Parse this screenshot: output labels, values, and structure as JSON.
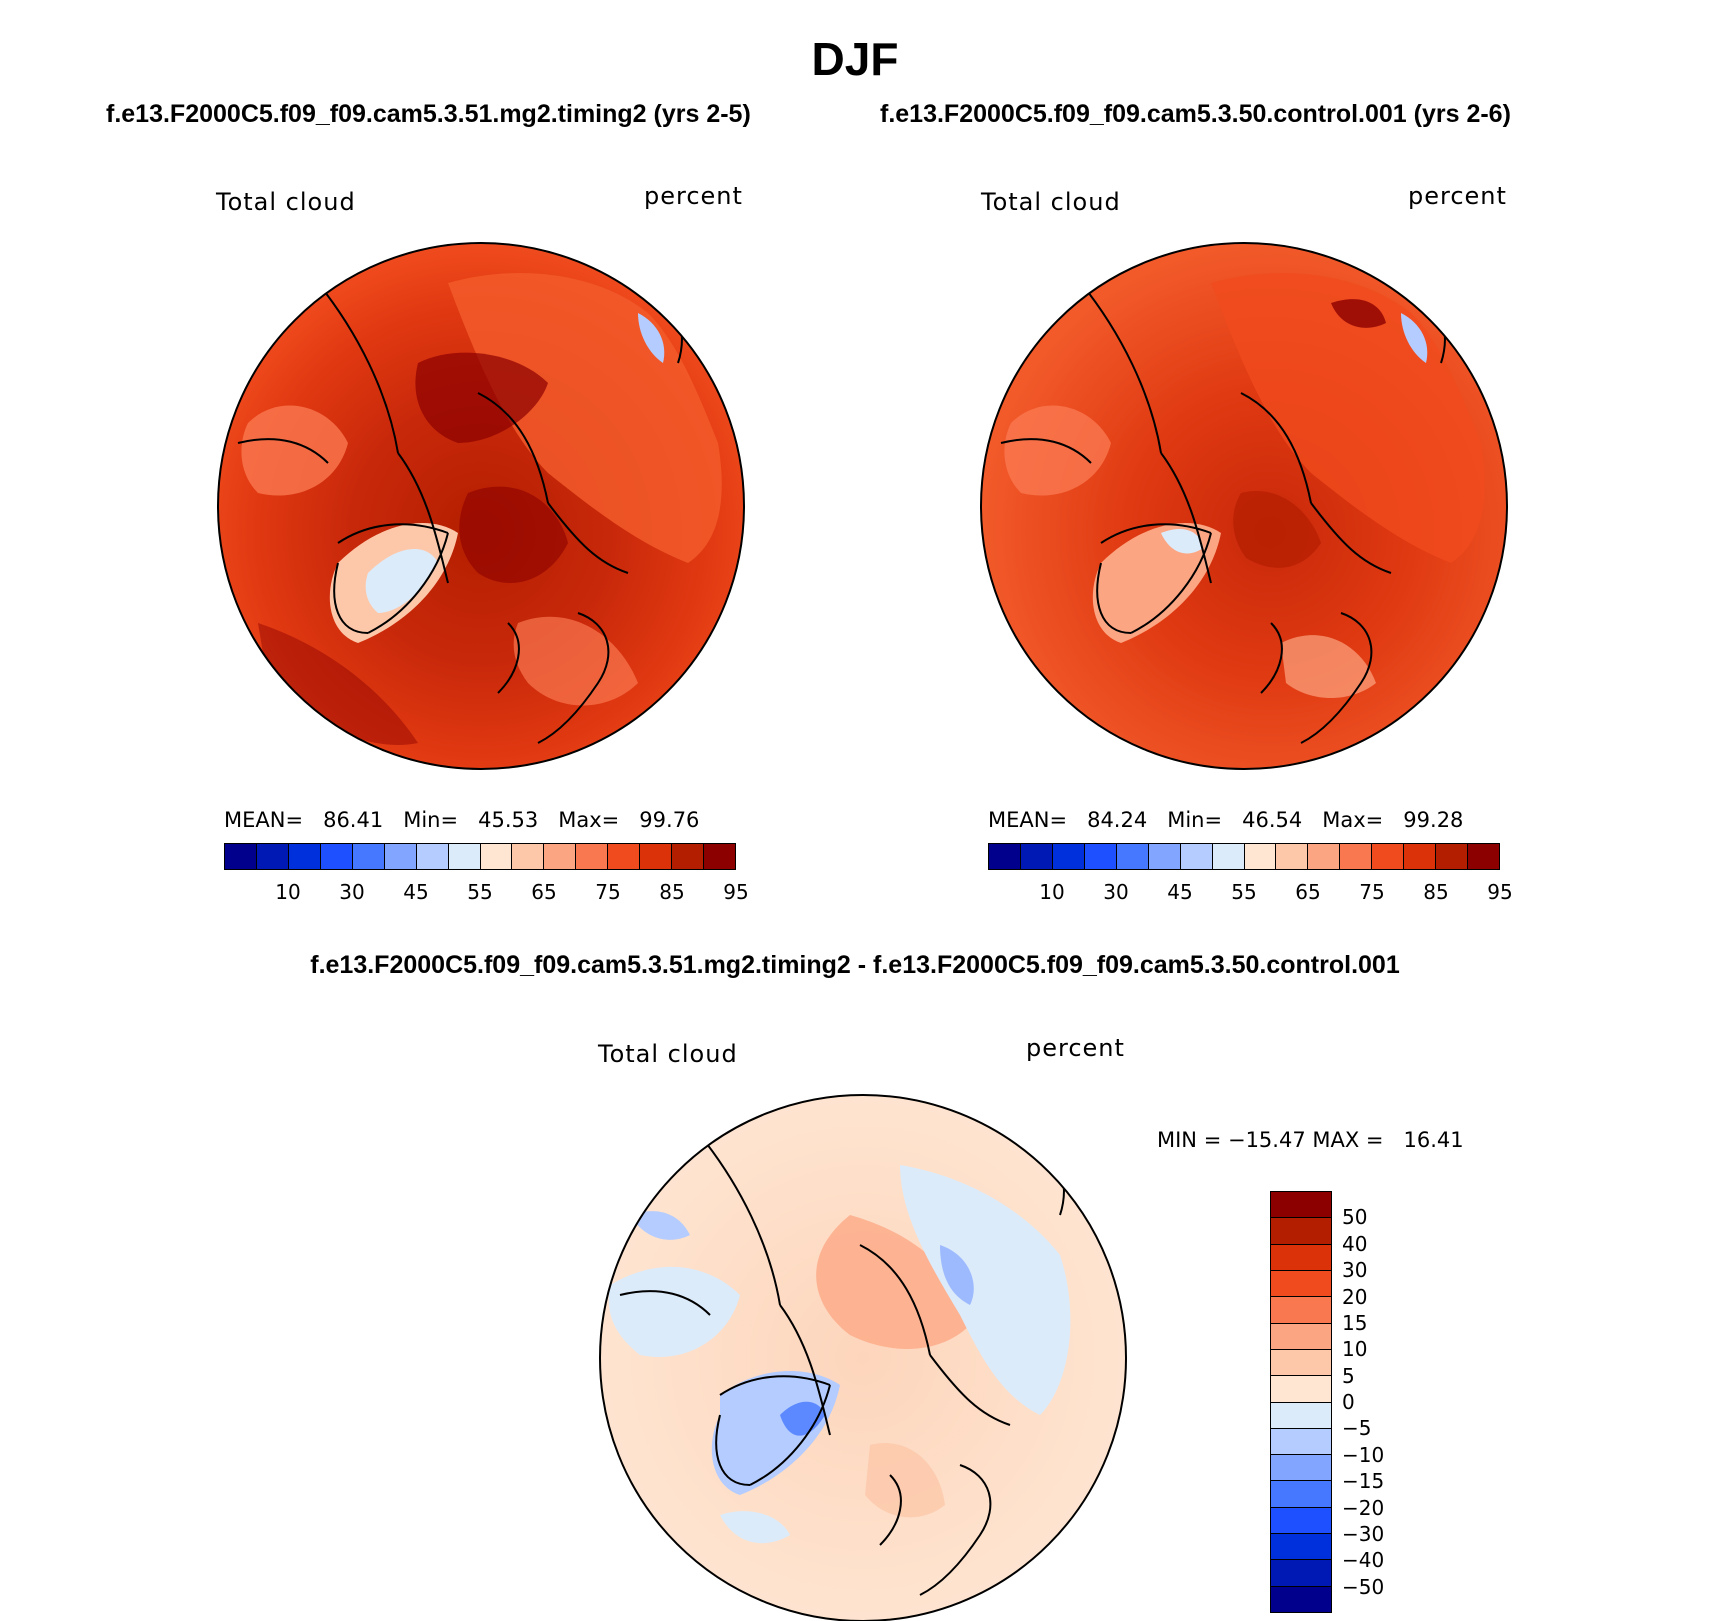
{
  "title": "DJF",
  "case1_title": "f.e13.F2000C5.f09_f09.cam5.3.51.mg2.timing2 (yrs 2-5)",
  "case2_title": "f.e13.F2000C5.f09_f09.cam5.3.50.control.001 (yrs 2-6)",
  "diff_title": "f.e13.F2000C5.f09_f09.cam5.3.51.mg2.timing2 - f.e13.F2000C5.f09_f09.cam5.3.50.control.001",
  "panel1": {
    "variable": "Total cloud",
    "units": "percent",
    "stats": "MEAN=   86.41   Min=   45.53   Max=   99.76"
  },
  "panel2": {
    "variable": "Total cloud",
    "units": "percent",
    "stats": "MEAN=   84.24   Min=   46.54   Max=   99.28"
  },
  "panel3": {
    "variable": "Total cloud",
    "units": "percent",
    "stats": "MIN = −15.47 MAX =   16.41"
  },
  "abs_colorbar": {
    "colors": [
      "#00008c",
      "#0018b4",
      "#0030dc",
      "#1e50ff",
      "#4678ff",
      "#82a5ff",
      "#b4ccff",
      "#dcebfa",
      "#fee6d2",
      "#fdc8aa",
      "#fca582",
      "#fa7850",
      "#f04b1e",
      "#dc320a",
      "#b41e00",
      "#8c0000"
    ],
    "ticks": [
      "10",
      "30",
      "45",
      "55",
      "65",
      "75",
      "85",
      "95"
    ]
  },
  "diff_colorbar": {
    "colors": [
      "#8c0000",
      "#b41e00",
      "#dc320a",
      "#f04b1e",
      "#fa7850",
      "#fca582",
      "#fdc8aa",
      "#fee6d2",
      "#dcebfa",
      "#b4ccff",
      "#82a5ff",
      "#4678ff",
      "#1e50ff",
      "#0030dc",
      "#0018b4",
      "#00008c"
    ],
    "ticks": [
      "50",
      "40",
      "30",
      "20",
      "15",
      "10",
      "5",
      "0",
      "−5",
      "−10",
      "−15",
      "−20",
      "−30",
      "−40",
      "−50"
    ]
  }
}
